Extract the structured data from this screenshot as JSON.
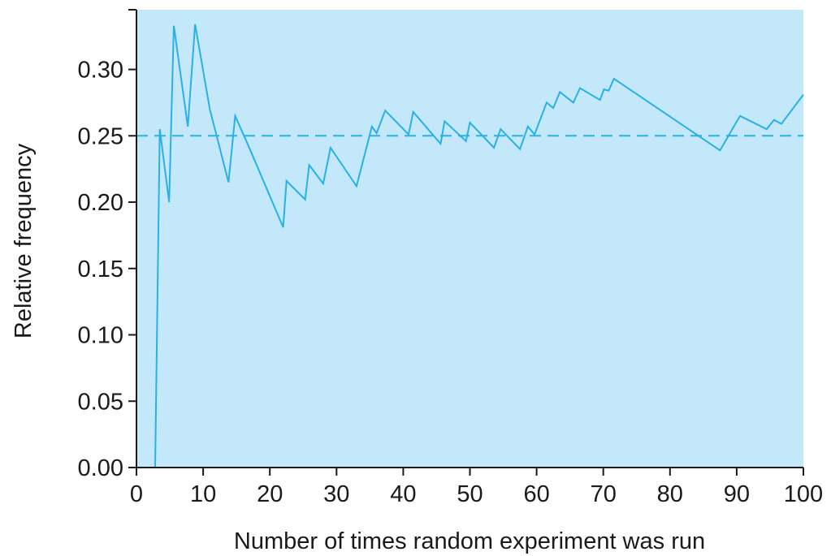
{
  "chart_data": {
    "type": "line",
    "title": "",
    "xlabel": "Number of times random experiment was run",
    "ylabel": "Relative frequency",
    "xlim": [
      0,
      100
    ],
    "ylim": [
      0,
      0.345
    ],
    "x_ticks": [
      0,
      10,
      20,
      30,
      40,
      50,
      60,
      70,
      80,
      90,
      100
    ],
    "x_tick_labels": [
      "0",
      "10",
      "20",
      "30",
      "40",
      "50",
      "60",
      "70",
      "80",
      "90",
      "100"
    ],
    "y_ticks": [
      0,
      0.05,
      0.1,
      0.15,
      0.2,
      0.25,
      0.3
    ],
    "y_tick_labels": [
      "0.00",
      "0.05",
      "0.10",
      "0.15",
      "0.20",
      "0.25",
      "0.30"
    ],
    "grid": false,
    "background_color": "#c3e8fa",
    "line_color": "#29b0e8",
    "reference_line": {
      "y": 0.25,
      "style": "dashed"
    },
    "series": [
      {
        "x": [
          2.8,
          3.5,
          4.9,
          5.6,
          7.7,
          8.8,
          11,
          13.8,
          14.8,
          17,
          22,
          22.5,
          25.3,
          25.9,
          28,
          29.1,
          33,
          35.3,
          36,
          37.3,
          40.8,
          41.5,
          45.6,
          46.2,
          49.4,
          50,
          53.6,
          54.6,
          57.5,
          58.7,
          59.7,
          61.5,
          62.5,
          63.5,
          65.5,
          66.5,
          69.5,
          70.1,
          70.8,
          71.6,
          87.5,
          90.5,
          94.5,
          95.6,
          96.7,
          100
        ],
        "y": [
          0,
          0.255,
          0.2,
          0.333,
          0.257,
          0.334,
          0.27,
          0.215,
          0.265,
          0.24,
          0.181,
          0.216,
          0.202,
          0.228,
          0.214,
          0.241,
          0.212,
          0.257,
          0.252,
          0.269,
          0.251,
          0.268,
          0.244,
          0.261,
          0.246,
          0.26,
          0.241,
          0.255,
          0.24,
          0.257,
          0.251,
          0.275,
          0.271,
          0.283,
          0.275,
          0.286,
          0.277,
          0.285,
          0.284,
          0.293,
          0.239,
          0.265,
          0.255,
          0.262,
          0.259,
          0.281
        ]
      }
    ]
  }
}
